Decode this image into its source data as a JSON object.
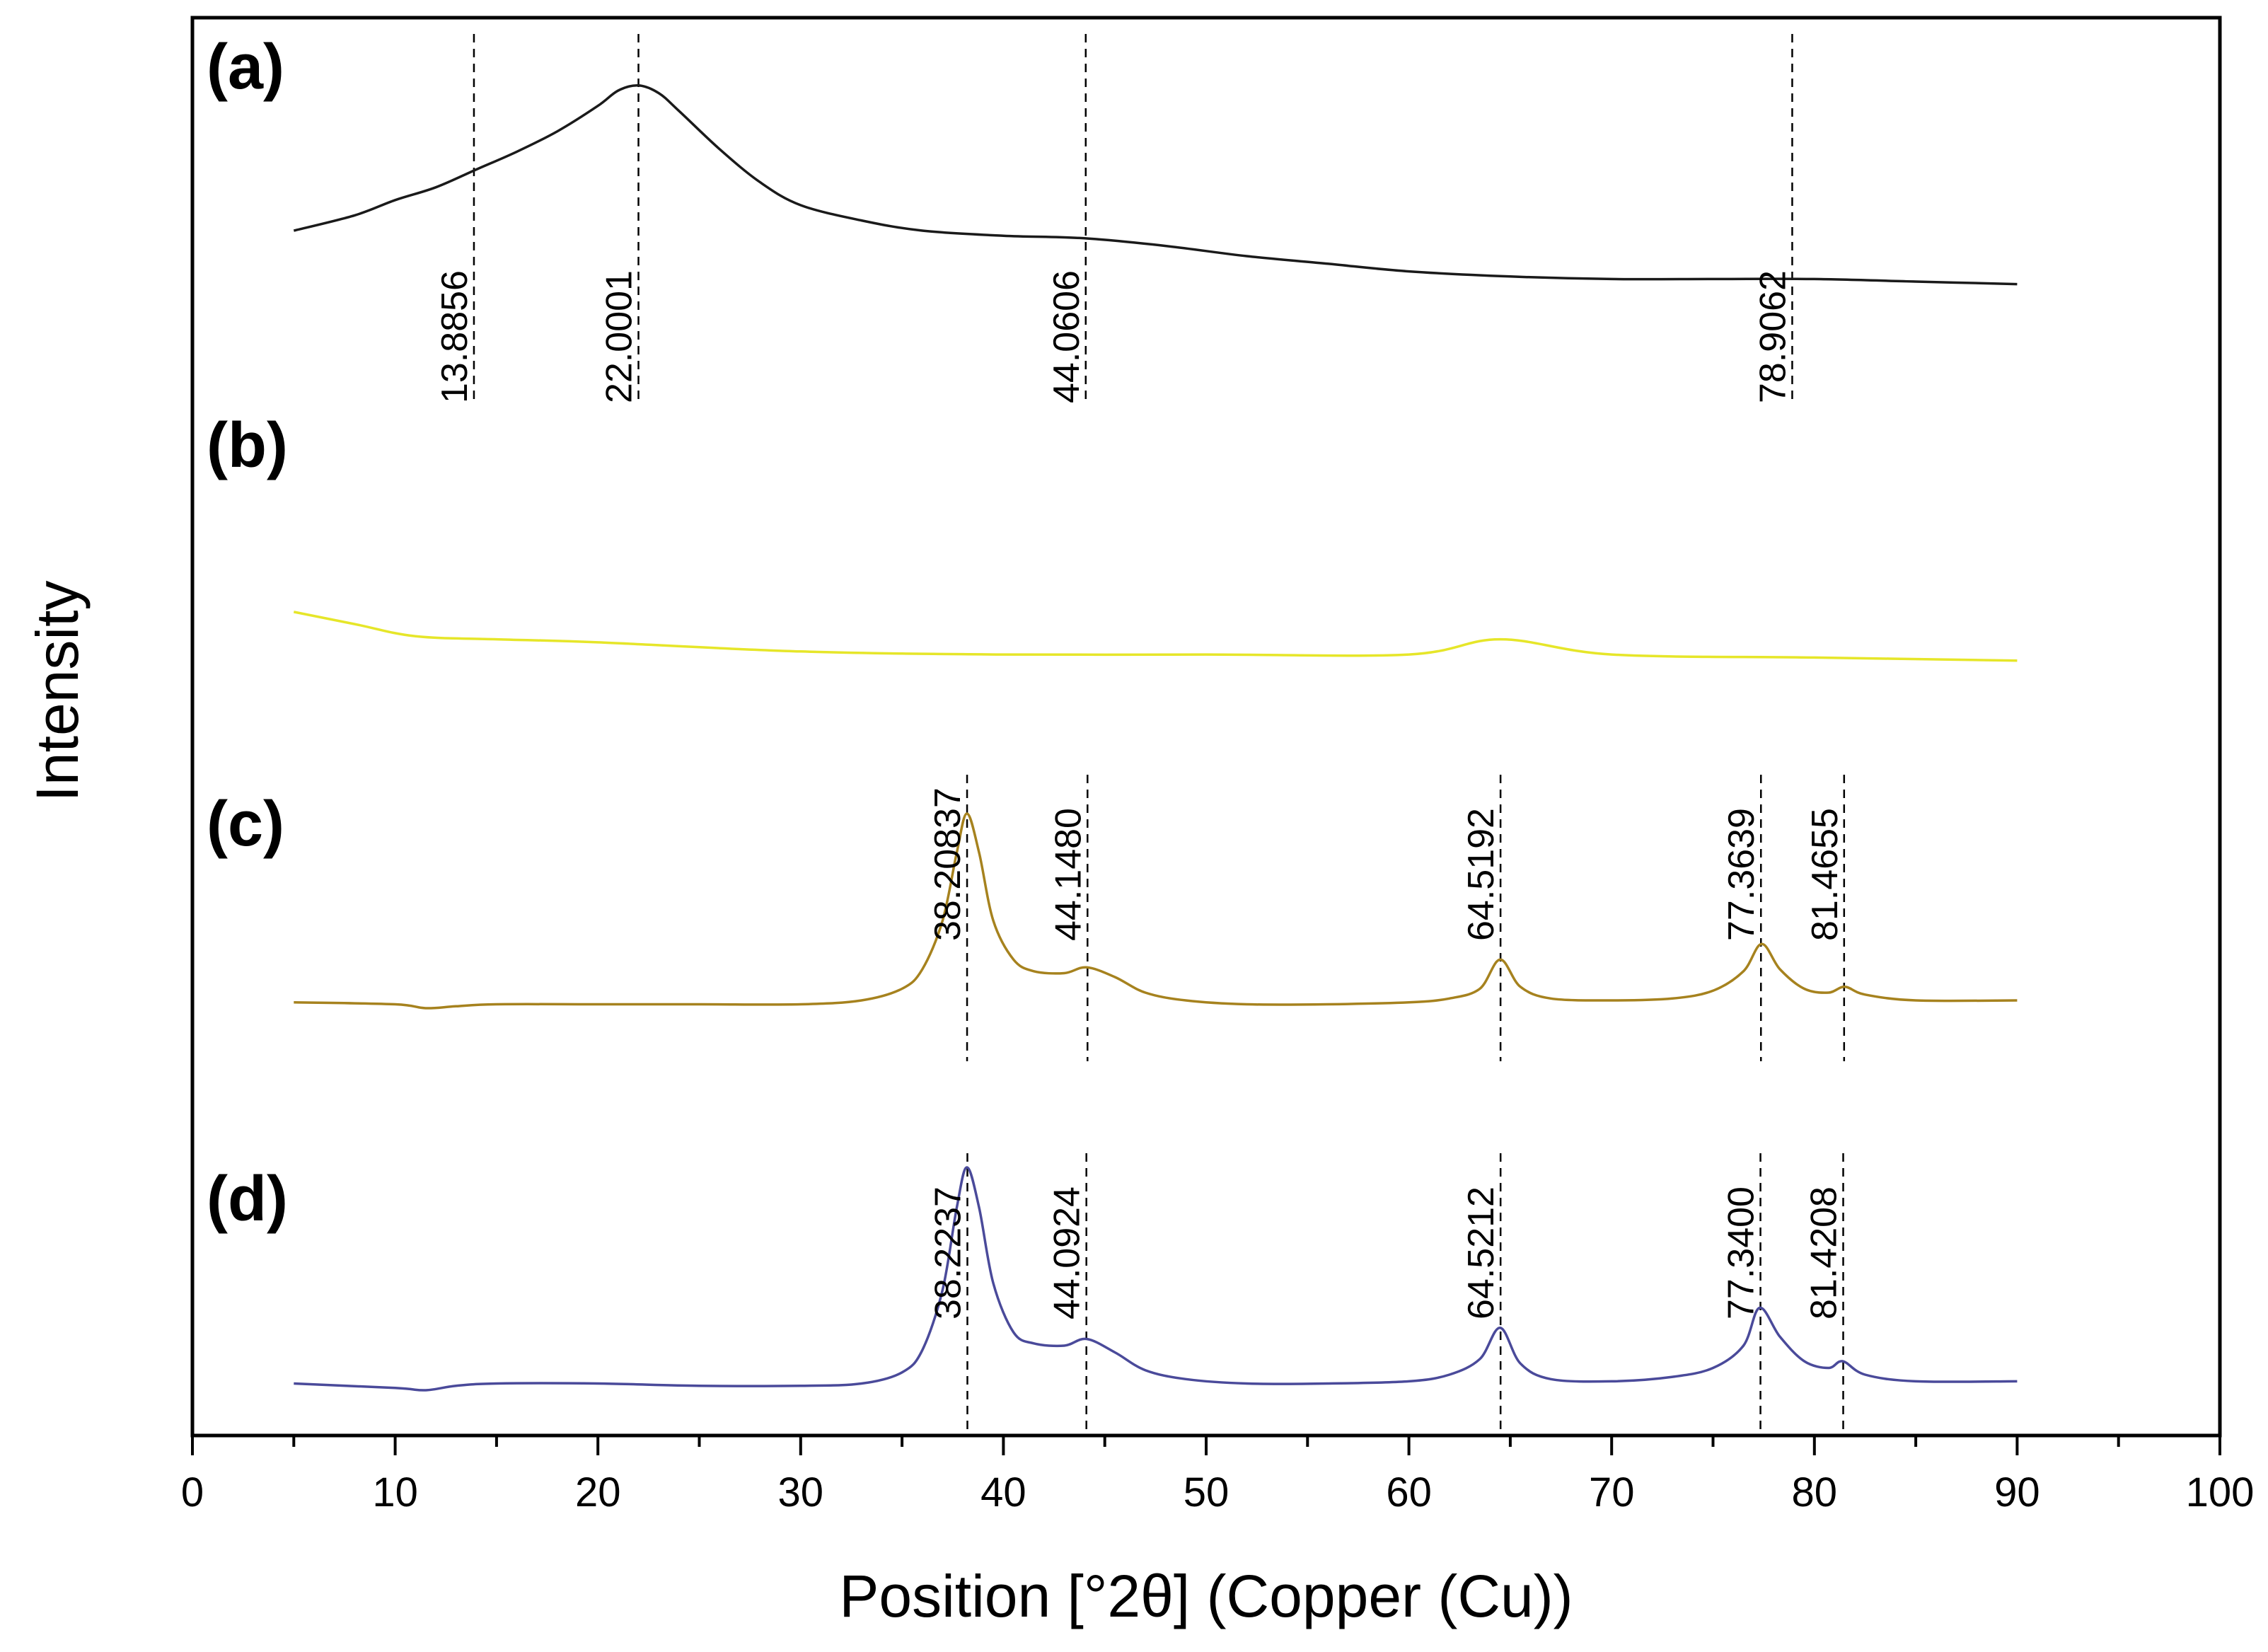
{
  "chart_data": {
    "type": "line",
    "xlabel": "Position [°2θ] (Copper (Cu))",
    "ylabel": "Intensity",
    "xlim": [
      0,
      100
    ],
    "x_ticks": [
      "0",
      "10",
      "20",
      "30",
      "40",
      "50",
      "60",
      "70",
      "80",
      "90",
      "100"
    ],
    "grid": false,
    "series": [
      {
        "name": "(a)",
        "color": "#1a1a1a",
        "x": [
          5,
          8,
          10,
          12,
          14,
          16,
          18,
          20,
          21,
          22,
          23,
          24,
          26,
          28,
          30,
          33,
          36,
          40,
          44,
          48,
          52,
          56,
          60,
          65,
          70,
          75,
          80,
          85,
          90
        ],
        "y": [
          0.4,
          0.46,
          0.52,
          0.57,
          0.64,
          0.71,
          0.79,
          0.89,
          0.95,
          0.97,
          0.94,
          0.87,
          0.72,
          0.59,
          0.5,
          0.44,
          0.4,
          0.38,
          0.37,
          0.34,
          0.3,
          0.27,
          0.24,
          0.22,
          0.21,
          0.21,
          0.21,
          0.2,
          0.19
        ],
        "peaks": [
          {
            "x": 13.8856,
            "label": "13.8856"
          },
          {
            "x": 22.0001,
            "label": "22.0001"
          },
          {
            "x": 44.0606,
            "label": "44.0606"
          },
          {
            "x": 78.9062,
            "label": "78.9062"
          }
        ]
      },
      {
        "name": "(b)",
        "color": "#e6e629",
        "x": [
          5,
          8,
          11,
          15,
          20,
          30,
          40,
          50,
          60,
          64.5,
          70,
          80,
          90
        ],
        "y": [
          0.57,
          0.53,
          0.49,
          0.48,
          0.47,
          0.44,
          0.43,
          0.43,
          0.43,
          0.48,
          0.43,
          0.42,
          0.41
        ],
        "peaks": []
      },
      {
        "name": "(c)",
        "color": "#a6821e",
        "x": [
          5,
          10,
          11.5,
          13,
          15,
          20,
          25,
          30,
          33,
          35,
          36,
          37,
          37.7,
          38.2,
          38.8,
          39.5,
          40.5,
          41.5,
          43,
          44.1,
          45.5,
          47,
          49,
          52,
          56,
          60,
          62,
          63.5,
          64.5,
          65.5,
          67,
          70,
          73,
          75,
          76.5,
          77.4,
          78.3,
          79.5,
          80.7,
          81.5,
          82.5,
          85,
          90
        ],
        "y": [
          0.03,
          0.02,
          0.0,
          0.01,
          0.02,
          0.02,
          0.02,
          0.02,
          0.04,
          0.1,
          0.2,
          0.45,
          0.8,
          1.0,
          0.8,
          0.45,
          0.25,
          0.19,
          0.18,
          0.21,
          0.16,
          0.08,
          0.04,
          0.02,
          0.02,
          0.03,
          0.05,
          0.1,
          0.25,
          0.11,
          0.05,
          0.04,
          0.05,
          0.09,
          0.19,
          0.33,
          0.2,
          0.1,
          0.08,
          0.11,
          0.07,
          0.04,
          0.04
        ],
        "peaks": [
          {
            "x": 38.20837,
            "label": "38.20837"
          },
          {
            "x": 44.148,
            "label": "44.1480"
          },
          {
            "x": 64.5192,
            "label": "64.5192"
          },
          {
            "x": 77.3639,
            "label": "77.3639"
          },
          {
            "x": 81.4655,
            "label": "81.4655"
          }
        ]
      },
      {
        "name": "(d)",
        "color": "#4a4a9a",
        "x": [
          5,
          10,
          11.5,
          13,
          15,
          20,
          25,
          30,
          33,
          35,
          36,
          37,
          37.7,
          38.2,
          38.8,
          39.5,
          40.5,
          41.5,
          43,
          44.1,
          45.5,
          47,
          49,
          52,
          56,
          60,
          62,
          63.5,
          64.5,
          65.5,
          67,
          70,
          73,
          75,
          76.5,
          77.3,
          78.3,
          79.5,
          80.7,
          81.4,
          82.5,
          85,
          90
        ],
        "y": [
          0.03,
          0.01,
          0.0,
          0.02,
          0.03,
          0.03,
          0.02,
          0.02,
          0.03,
          0.08,
          0.18,
          0.45,
          0.82,
          1.0,
          0.82,
          0.48,
          0.26,
          0.21,
          0.2,
          0.23,
          0.17,
          0.09,
          0.05,
          0.03,
          0.03,
          0.04,
          0.07,
          0.14,
          0.28,
          0.12,
          0.05,
          0.04,
          0.06,
          0.1,
          0.2,
          0.37,
          0.24,
          0.13,
          0.1,
          0.13,
          0.07,
          0.04,
          0.04
        ],
        "peaks": [
          {
            "x": 38.2237,
            "label": "38.2237"
          },
          {
            "x": 44.0924,
            "label": "44.0924"
          },
          {
            "x": 64.5212,
            "label": "64.5212"
          },
          {
            "x": 77.34,
            "label": "77.3400"
          },
          {
            "x": 81.4208,
            "label": "81.4208"
          }
        ]
      }
    ]
  }
}
